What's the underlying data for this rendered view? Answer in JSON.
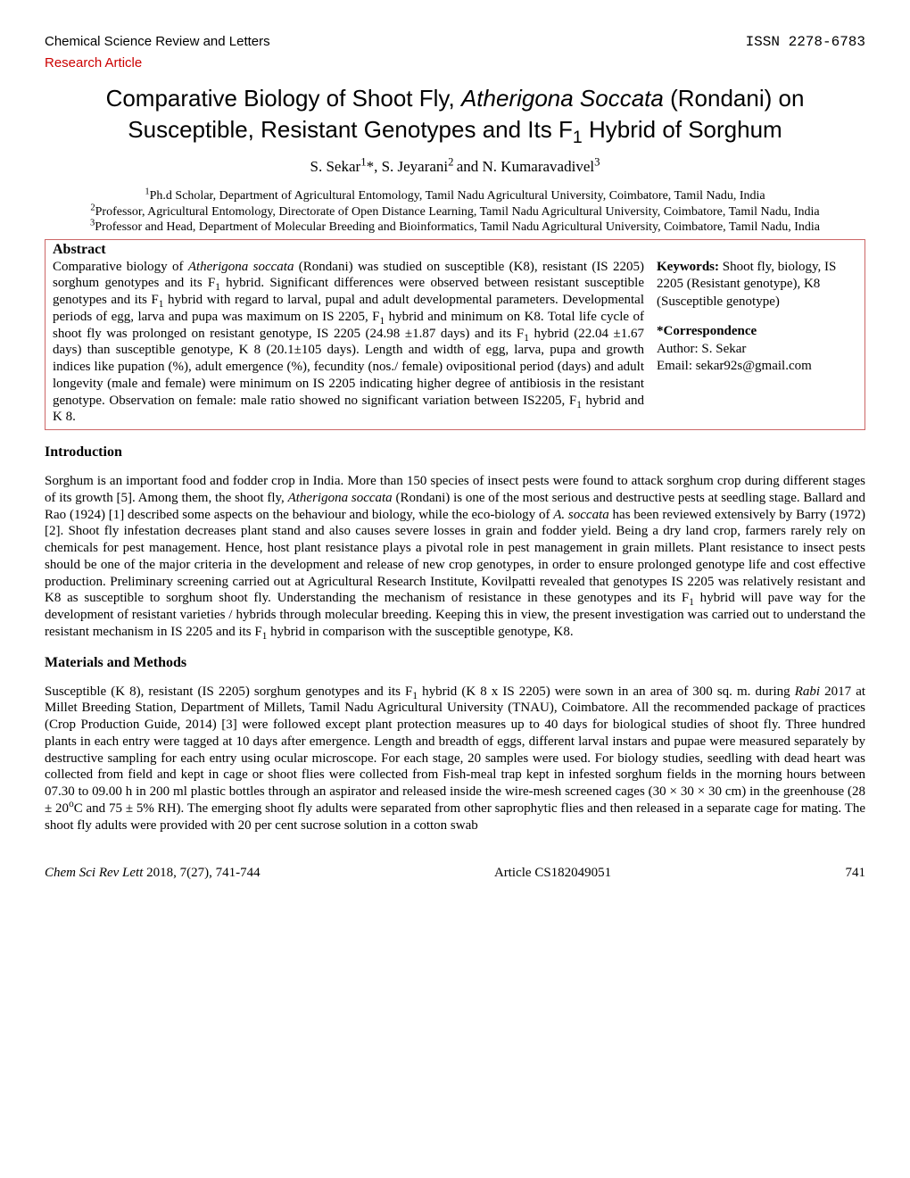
{
  "header": {
    "journal": "Chemical Science Review and Letters",
    "issn": "ISSN 2278-6783",
    "article_type": "Research Article"
  },
  "title": {
    "pre": "Comparative Biology of Shoot Fly, ",
    "species": "Atherigona Soccata",
    "mid": " (Rondani) on Susceptible, Resistant Genotypes and Its F",
    "sub": "1",
    "post": " Hybrid of Sorghum"
  },
  "authors": {
    "a1_name": "S. Sekar",
    "a1_sup": "1",
    "a1_mark": "*, ",
    "a2_name": "S. Jeyarani",
    "a2_sup": "2 ",
    "a2_join": "and ",
    "a3_name": "N. Kumaravadivel",
    "a3_sup": "3"
  },
  "affiliations": {
    "l1_sup": "1",
    "l1": "Ph.d Scholar, Department of Agricultural Entomology, Tamil Nadu Agricultural University, Coimbatore, Tamil Nadu, India",
    "l2_sup": "2",
    "l2": "Professor, Agricultural Entomology, Directorate of Open Distance Learning, Tamil Nadu Agricultural University, Coimbatore, Tamil Nadu, India",
    "l3_sup": "3",
    "l3": "Professor and Head, Department of Molecular Breeding and Bioinformatics, Tamil Nadu Agricultural University, Coimbatore, Tamil Nadu, India"
  },
  "abstract": {
    "heading": "Abstract",
    "p1_a": "Comparative biology of ",
    "p1_species": "Atherigona soccata",
    "p1_b": " (Rondani) was studied on susceptible (K8), resistant (IS 2205) sorghum genotypes and its F",
    "p1_sub1": "1",
    "p1_c": " hybrid. Significant differences were observed between resistant susceptible genotypes and its F",
    "p1_sub2": "1",
    "p1_d": " hybrid with regard to larval, pupal and adult developmental parameters. Developmental periods of egg, larva and pupa was maximum on IS 2205, F",
    "p1_sub3": "1",
    "p1_e": " hybrid and minimum on K8. Total life cycle of shoot fly was prolonged on resistant genotype, IS 2205 (24.98 ±1.87 days) and its F",
    "p1_sub4": "1",
    "p1_f": " hybrid (22.04 ±1.67 days) than susceptible genotype, K 8 (20.1±105 days). Length and width of egg, larva, pupa and growth indices like pupation (%), adult emergence (%), fecundity (nos./ female) ovipositional period (days) and adult longevity (male and female) were minimum on IS 2205 indicating higher degree of antibiosis in the resistant genotype. Observation on female: male ratio showed no significant variation between IS2205, F",
    "p1_sub5": "1",
    "p1_g": " hybrid and K 8."
  },
  "sidebar": {
    "keywords_label": "Keywords:",
    "keywords_text": " Shoot fly, biology, IS 2205 (Resistant genotype), K8 (Susceptible genotype)",
    "corr_label": "*Correspondence",
    "corr_author": "Author: S. Sekar",
    "corr_email": "Email: sekar92s@gmail.com"
  },
  "intro": {
    "heading": "Introduction",
    "p_a": "Sorghum is an important food and fodder crop in India. More than 150 species of insect pests were found to attack sorghum crop during different stages of its growth [5]. Among them, the shoot fly, ",
    "p_species": "Atherigona soccata",
    "p_b": " (Rondani) is one of the most serious and destructive pests at seedling stage. Ballard and Rao (1924) [1] described some aspects on the behaviour and biology, while the eco-biology of ",
    "p_species2": "A. soccata",
    "p_c": " has been reviewed extensively by Barry (1972) [2]. Shoot fly infestation decreases plant stand and also causes severe losses in grain and fodder yield. Being a dry land crop, farmers rarely rely on chemicals for pest management. Hence, host plant resistance plays a pivotal role in pest management in grain millets. Plant resistance to insect pests should be one of the major criteria in the development and release of new crop genotypes, in order to ensure prolonged genotype life and cost effective production. Preliminary screening carried out at Agricultural Research Institute, Kovilpatti revealed that genotypes IS 2205 was relatively resistant and K8 as susceptible to sorghum shoot fly. Understanding the mechanism of resistance in these genotypes and its F",
    "p_sub1": "1",
    "p_d": " hybrid will pave way for the development of resistant varieties / hybrids through molecular breeding. Keeping this in view, the present investigation was carried out to understand the resistant mechanism in IS 2205 and its F",
    "p_sub2": "1",
    "p_e": " hybrid in comparison with the susceptible genotype, K8."
  },
  "methods": {
    "heading": "Materials and Methods",
    "p_a": "Susceptible (K 8), resistant (IS 2205) sorghum genotypes and its F",
    "p_sub1": "1",
    "p_b": " hybrid (K 8 x IS 2205) were sown in an area of 300 sq. m. during ",
    "p_rabi": "Rabi",
    "p_c": " 2017 at Millet Breeding Station, Department of Millets, Tamil Nadu Agricultural University (TNAU), Coimbatore. All the recommended package of practices (Crop Production Guide, 2014) [3] were followed except plant protection measures up to 40 days for biological studies of shoot fly. Three hundred plants in each entry were tagged at 10 days after emergence. Length and breadth of eggs, different larval instars and pupae were measured separately by destructive sampling for each entry using ocular microscope. For each stage, 20 samples were used. For biology studies, seedling with dead heart was collected from field and kept in cage or shoot flies were collected from Fish-meal trap kept in infested sorghum fields in the morning hours between 07.30 to 09.00 h in 200 ml plastic bottles through an aspirator and released inside the wire-mesh screened cages (30 × 30 × 30 cm) in the greenhouse (28 ± 20",
    "p_deg": "o",
    "p_d": "C and 75 ± 5% RH). The emerging shoot fly adults were separated from other saprophytic flies and then released in a separate cage for mating. The shoot fly adults were provided with 20 per cent sucrose solution in a cotton swab"
  },
  "footer": {
    "left_italic": "Chem Sci Rev Lett ",
    "left_rest": "2018, 7(27),  741-744",
    "article_no": "Article CS182049051",
    "page_no": "741"
  }
}
